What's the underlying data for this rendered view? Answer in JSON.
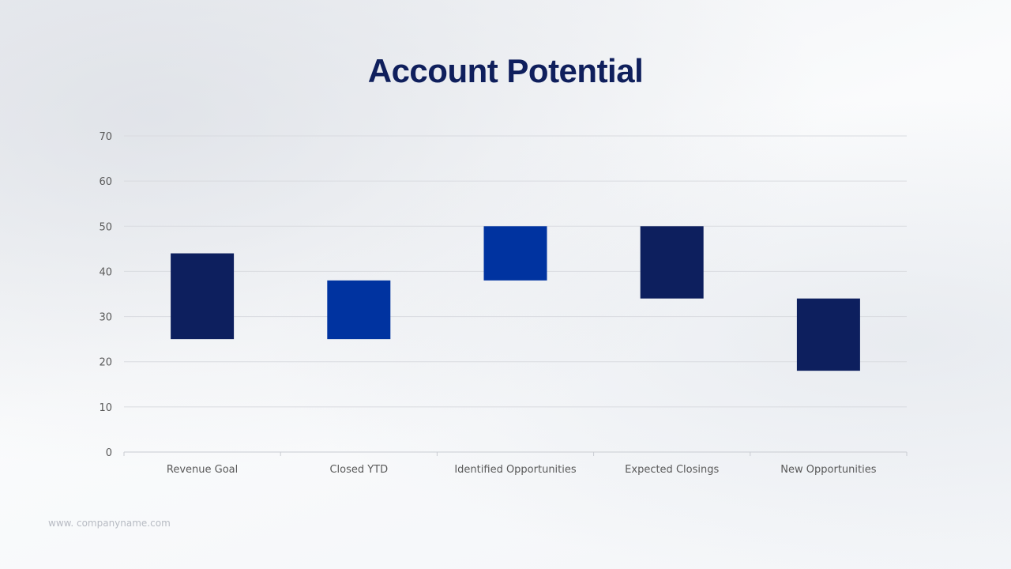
{
  "slide": {
    "title": "Account Potential",
    "footer": "www. companyname.com"
  },
  "chart_data": {
    "type": "bar",
    "subtype": "floating",
    "categories": [
      "Revenue Goal",
      "Closed YTD",
      "Identified Opportunities",
      "Expected Closings",
      "New Opportunities"
    ],
    "ranges": [
      [
        25,
        44
      ],
      [
        25,
        38
      ],
      [
        38,
        50
      ],
      [
        34,
        50
      ],
      [
        18,
        34
      ]
    ],
    "colors": [
      "#0d1f5e",
      "#0033a0",
      "#0033a0",
      "#0d1f5e",
      "#0d1f5e"
    ],
    "ylim": [
      0,
      70
    ],
    "yticks": [
      0,
      10,
      20,
      30,
      40,
      50,
      60,
      70
    ],
    "grid": true,
    "legend": "none",
    "xlabel": "",
    "ylabel": ""
  }
}
